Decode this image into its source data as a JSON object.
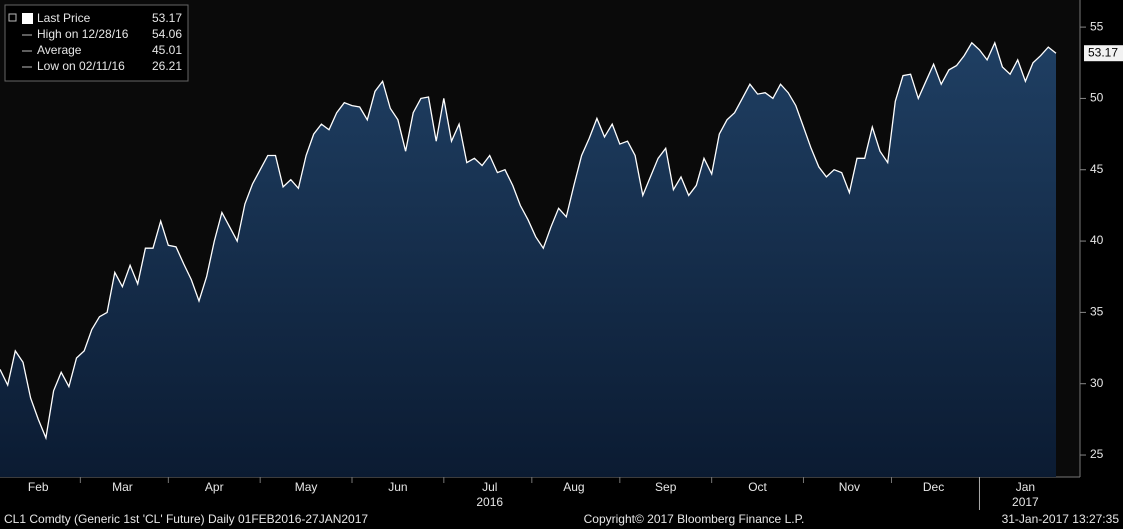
{
  "chart_data": {
    "type": "area",
    "categories": [
      null,
      null,
      null,
      null,
      null,
      "Feb",
      null,
      null,
      null,
      null,
      null,
      null,
      null,
      null,
      null,
      null,
      "Mar",
      null,
      null,
      null,
      null,
      null,
      null,
      null,
      null,
      null,
      null,
      null,
      "Apr",
      null,
      null,
      null,
      null,
      null,
      null,
      null,
      null,
      null,
      null,
      null,
      "May",
      null,
      null,
      null,
      null,
      null,
      null,
      null,
      null,
      null,
      null,
      null,
      "Jun",
      null,
      null,
      null,
      null,
      null,
      null,
      null,
      null,
      null,
      null,
      null,
      "Jul",
      null,
      null,
      null,
      null,
      null,
      null,
      null,
      null,
      null,
      null,
      "Aug",
      null,
      null,
      null,
      null,
      null,
      null,
      null,
      null,
      null,
      null,
      null,
      "Sep",
      null,
      null,
      null,
      null,
      null,
      null,
      null,
      null,
      null,
      null,
      null,
      "Oct",
      null,
      null,
      null,
      null,
      null,
      null,
      null,
      null,
      null,
      null,
      null,
      "Nov",
      null,
      null,
      null,
      null,
      null,
      null,
      null,
      null,
      null,
      null,
      "Dec",
      null,
      null,
      null,
      null,
      null,
      null,
      null,
      null,
      null,
      null,
      null,
      "Jan",
      null,
      null,
      null,
      null
    ],
    "series": [
      {
        "name": "Last Price",
        "color": "#ffffff",
        "values": [
          31,
          29.9,
          32.3,
          31.5,
          29,
          27.5,
          26.2,
          29.5,
          30.8,
          29.8,
          31.8,
          32.3,
          33.8,
          34.7,
          35,
          37.8,
          36.8,
          38.3,
          37,
          39.5,
          39.5,
          41.4,
          39.7,
          39.6,
          38.4,
          37.3,
          35.8,
          37.5,
          40,
          42,
          41,
          40,
          42.6,
          44,
          45,
          46,
          46,
          43.8,
          44.3,
          43.7,
          46,
          47.5,
          48.2,
          47.8,
          49,
          49.7,
          49.5,
          49.4,
          48.5,
          50.5,
          51.2,
          49.3,
          48.5,
          46.3,
          49,
          50,
          50.1,
          47,
          50,
          47,
          48.2,
          45.5,
          45.8,
          45.3,
          46,
          44.8,
          45,
          43.9,
          42.5,
          41.5,
          40.3,
          39.5,
          41,
          42.3,
          41.7,
          43.9,
          46,
          47.2,
          48.6,
          47.3,
          48.2,
          46.8,
          47,
          46,
          43.2,
          44.5,
          45.8,
          46.5,
          43.6,
          44.5,
          43.2,
          43.9,
          45.8,
          44.7,
          47.5,
          48.5,
          49,
          50,
          51,
          50.3,
          50.4,
          50,
          51,
          50.4,
          49.5,
          48,
          46.5,
          45.2,
          44.5,
          45,
          44.8,
          43.4,
          45.8,
          45.8,
          48,
          46.3,
          45.5,
          49.8,
          51.6,
          51.7,
          50,
          51.2,
          52.4,
          51,
          52,
          52.3,
          53,
          53.9,
          53.4,
          52.7,
          53.9,
          52.2,
          51.7,
          52.7,
          51.2,
          52.5,
          53,
          53.6,
          53.17
        ]
      }
    ],
    "ylim": [
      23.46,
      56.9
    ],
    "yticks": [
      25,
      30,
      35,
      40,
      45,
      50,
      55
    ],
    "years": [
      "2016",
      "2017"
    ],
    "legend": [
      {
        "label": "High on 12/28/16",
        "value": 54.06
      },
      {
        "label": "Average",
        "value": 45.01
      },
      {
        "label": "Low on 02/11/16",
        "value": 26.21
      }
    ],
    "last_price": 53.17,
    "footer": {
      "left": "CL1 Comdty (Generic 1st 'CL' Future)  Daily 01FEB2016-27JAN2017",
      "center": "Copyright© 2017 Bloomberg Finance L.P.",
      "right": "31-Jan-2017 13:27:35"
    }
  }
}
